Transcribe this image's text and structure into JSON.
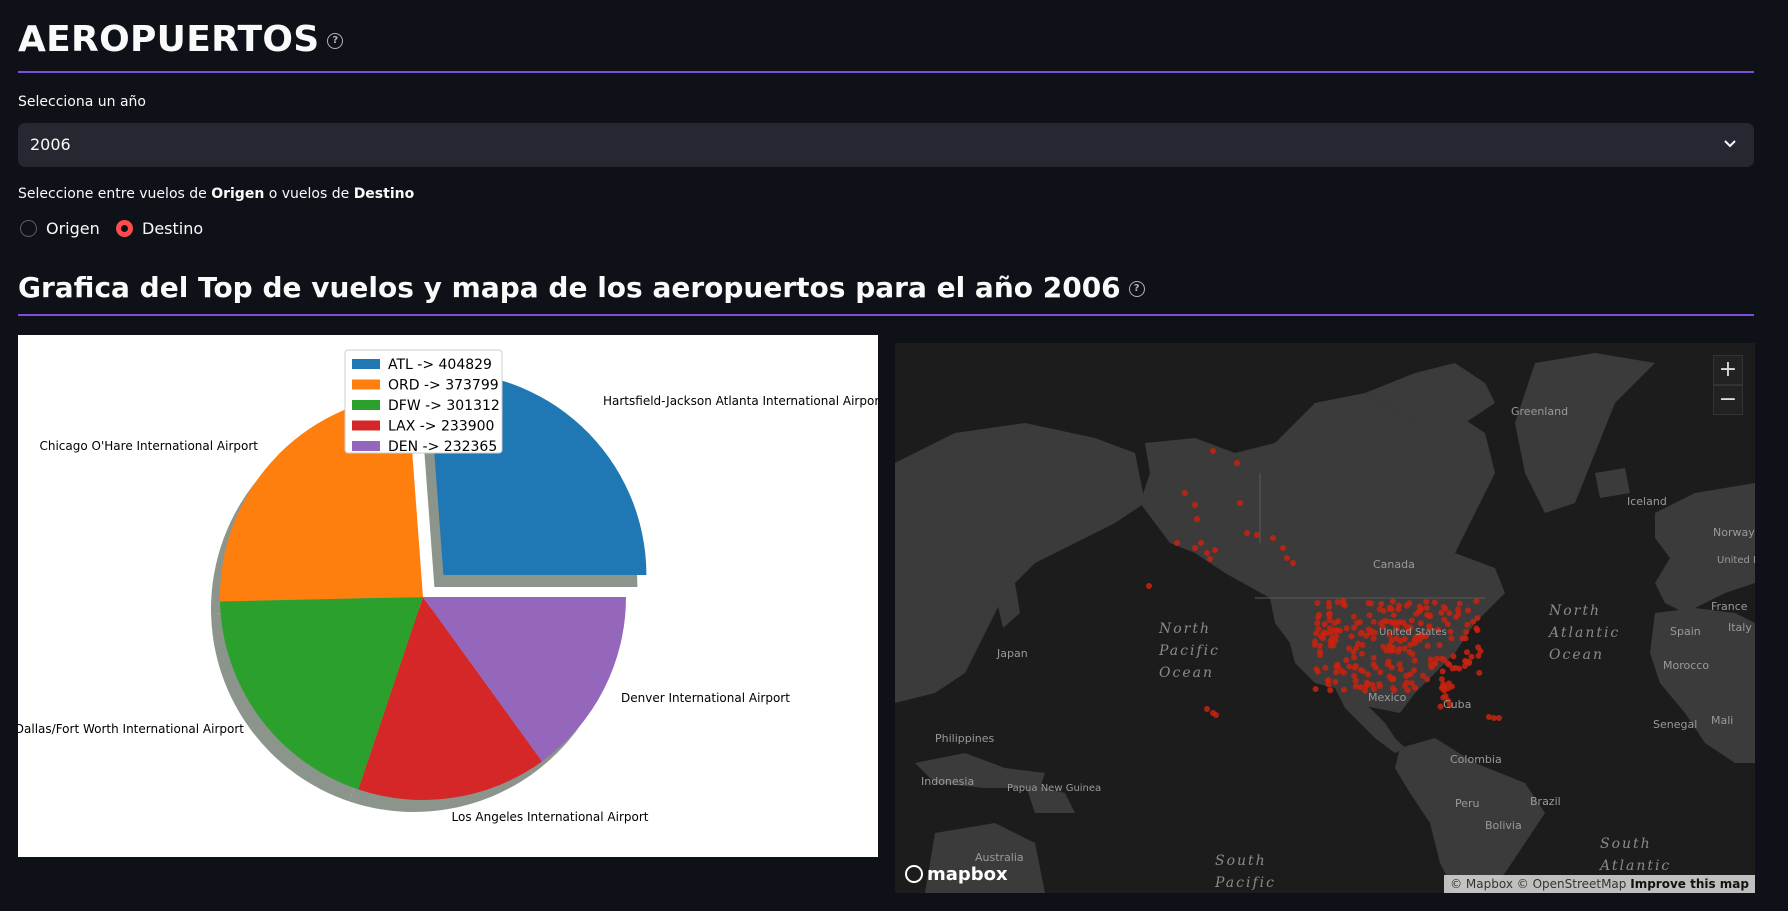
{
  "page": {
    "title": "AEROPUERTOS",
    "help_icon": "?"
  },
  "year_select": {
    "label": "Selecciona un año",
    "value": "2006"
  },
  "flight_type": {
    "label_prefix": "Seleccione entre vuelos de ",
    "label_bold1": "Origen",
    "label_mid": " o vuelos de ",
    "label_bold2": "Destino",
    "options": [
      "Origen",
      "Destino"
    ],
    "selected": "Destino"
  },
  "section": {
    "heading": "Grafica del Top de vuelos y mapa de los aeropuertos para el año 2006"
  },
  "chart_data": {
    "type": "pie",
    "categories": [
      "Hartsfield-Jackson Atlanta International Airport",
      "Chicago O'Hare International Airport",
      "Dallas/Fort Worth International Airport",
      "Los Angeles International Airport",
      "Denver International Airport"
    ],
    "values": [
      404829,
      373799,
      301312,
      233900,
      232365
    ],
    "legend": [
      "ATL -> 404829",
      "ORD -> 373799",
      "DFW -> 301312",
      "LAX -> 233900",
      "DEN -> 232365"
    ],
    "colors": [
      "#1f77b4",
      "#ff7f0e",
      "#2ca02c",
      "#d62728",
      "#9467bd"
    ],
    "explode_first": true,
    "shadow": true,
    "legend_placement": "top-center"
  },
  "map": {
    "labels": {
      "greenland": "Greenland",
      "iceland": "Iceland",
      "norway": "Norway",
      "united_kingdom": "United Kingdom",
      "canada": "Canada",
      "united_states": "United States",
      "mexico": "Mexico",
      "cuba": "Cuba",
      "japan": "Japan",
      "philippines": "Philippines",
      "indonesia": "Indonesia",
      "papua_new_guinea": "Papua New Guinea",
      "australia": "Australia",
      "colombia": "Colombia",
      "peru": "Peru",
      "bolivia": "Bolivia",
      "brazil": "Brazil",
      "spain": "Spain",
      "france": "France",
      "italy": "Italy",
      "morocco": "Morocco",
      "mali": "Mali",
      "senegal": "Senegal",
      "north_pacific": "North Pacific Ocean",
      "north_atlantic": "North Atlantic Ocean",
      "south_pacific": "South Pacific",
      "south_atlantic": "South Atlantic"
    },
    "zoom_in": "+",
    "zoom_out": "−",
    "logo": "mapbox",
    "attribution_1": "© Mapbox © OpenStreetMap",
    "attribution_2": "Improve this map",
    "point_color": "#c8230f"
  }
}
